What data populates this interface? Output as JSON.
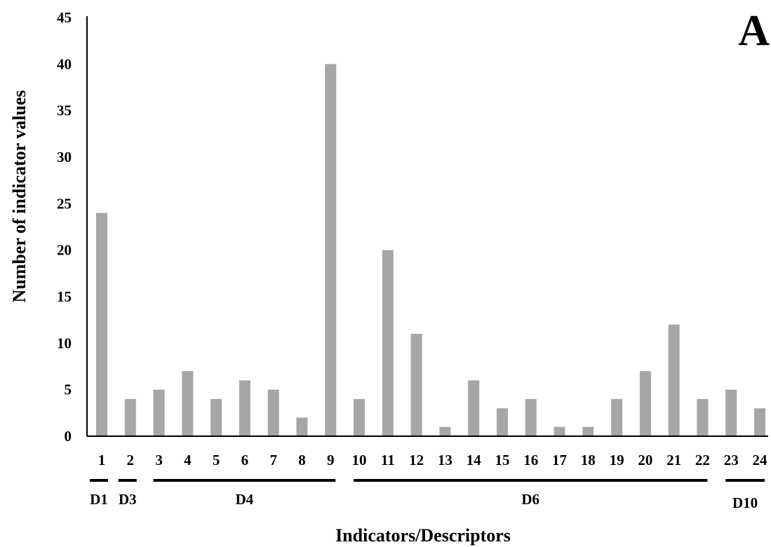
{
  "chart_data": {
    "type": "bar",
    "panel_label": "A",
    "ylabel": "Number of indicator values",
    "xlabel": "Indicators/Descriptors",
    "ylim": [
      0,
      45
    ],
    "yticks": [
      "0",
      "5",
      "10",
      "15",
      "20",
      "25",
      "30",
      "35",
      "40",
      "45"
    ],
    "categories": [
      "1",
      "2",
      "3",
      "4",
      "5",
      "6",
      "7",
      "8",
      "9",
      "10",
      "11",
      "12",
      "13",
      "14",
      "15",
      "16",
      "17",
      "18",
      "19",
      "20",
      "21",
      "22",
      "23",
      "24"
    ],
    "values": [
      24,
      4,
      5,
      7,
      4,
      6,
      5,
      2,
      40,
      4,
      20,
      11,
      1,
      6,
      3,
      4,
      1,
      1,
      4,
      7,
      12,
      4,
      5,
      3
    ],
    "bar_color": "#a6a6a6",
    "descriptor_groups": [
      {
        "label": "D1",
        "from": 1,
        "to": 1
      },
      {
        "label": "D3",
        "from": 2,
        "to": 2
      },
      {
        "label": "D4",
        "from": 3,
        "to": 9
      },
      {
        "label": "D6",
        "from": 10,
        "to": 22
      },
      {
        "label": "D10",
        "from": 23,
        "to": 24
      }
    ],
    "grid": false,
    "legend": "none"
  }
}
